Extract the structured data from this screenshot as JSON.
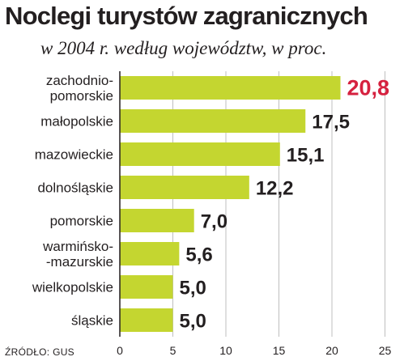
{
  "header": {
    "title": "Noclegi turystów zagranicznych",
    "subtitle": "w 2004 r. według województw, w proc."
  },
  "source": "ŹRÓDŁO: GUS",
  "colors": {
    "bar": "#c4d630",
    "highlight": "#d6213f",
    "text": "#231f20",
    "grid": "#bfbfbf"
  },
  "chart_data": {
    "type": "bar",
    "orientation": "horizontal",
    "title": "Noclegi turystów zagranicznych",
    "subtitle": "w 2004 r. według województw, w proc.",
    "categories": [
      [
        "zachodnio-",
        "pomorskie"
      ],
      [
        "małopolskie"
      ],
      [
        "mazowieckie"
      ],
      [
        "dolnośląskie"
      ],
      [
        "pomorskie"
      ],
      [
        "warmińsko-",
        "-mazurskie"
      ],
      [
        "wielkopolskie"
      ],
      [
        "śląskie"
      ]
    ],
    "values": [
      20.8,
      17.5,
      15.1,
      12.2,
      7.0,
      5.6,
      5.0,
      5.0
    ],
    "value_labels": [
      "20,8",
      "17,5",
      "15,1",
      "12,2",
      "7,0",
      "5,6",
      "5,0",
      "5,0"
    ],
    "highlight_index": 0,
    "xlim": [
      0,
      25
    ],
    "xticks": [
      0,
      5,
      10,
      15,
      20,
      25
    ],
    "xtick_labels": [
      "0",
      "5",
      "10",
      "15",
      "20",
      "25"
    ],
    "grid": true
  }
}
